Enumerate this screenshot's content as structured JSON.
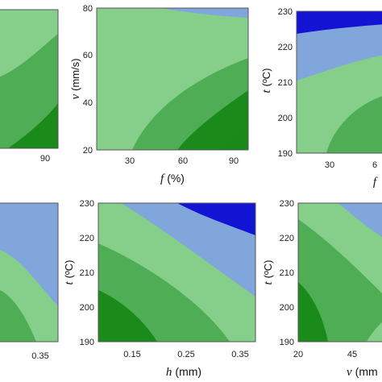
{
  "colors": {
    "darkgreen": "#1a8a1a",
    "midgreen": "#4fae55",
    "lightgreen": "#85cf8a",
    "lightblue": "#80a6dc",
    "darkblue": "#1313d4"
  },
  "chart_data": [
    {
      "type": "contour",
      "id": "p1",
      "xlabel": "",
      "ylabel": "",
      "xticks": [
        "90"
      ],
      "yticks": [],
      "levels": [
        "darkgreen",
        "midgreen",
        "lightgreen"
      ]
    },
    {
      "type": "contour",
      "id": "p2",
      "xlabel_var": "f",
      "xlabel_unit": "(%)",
      "ylabel_var": "v",
      "ylabel_unit": "(mm/s)",
      "xticks": [
        "30",
        "60",
        "90"
      ],
      "yticks": [
        "20",
        "40",
        "60",
        "80"
      ],
      "xlim": [
        10,
        100
      ],
      "ylim": [
        20,
        80
      ],
      "levels": [
        "darkgreen",
        "midgreen",
        "lightgreen",
        "lightblue"
      ]
    },
    {
      "type": "contour",
      "id": "p3",
      "xlabel_var": "f",
      "xlabel_unit": "",
      "ylabel_var": "t",
      "ylabel_unit": "(ºC)",
      "xticks": [
        "30",
        "6"
      ],
      "yticks": [
        "190",
        "200",
        "210",
        "220",
        "230"
      ],
      "ylim": [
        190,
        230
      ],
      "levels": [
        "midgreen",
        "lightgreen",
        "lightblue",
        "darkblue"
      ]
    },
    {
      "type": "contour",
      "id": "p4",
      "xlabel": "",
      "ylabel": "",
      "xticks": [
        "0.35"
      ],
      "yticks": [],
      "levels": [
        "midgreen",
        "lightgreen",
        "lightblue"
      ]
    },
    {
      "type": "contour",
      "id": "p5",
      "xlabel_var": "h",
      "xlabel_unit": "(mm)",
      "ylabel_var": "t",
      "ylabel_unit": "(ºC)",
      "xticks": [
        "0.15",
        "0.25",
        "0.35"
      ],
      "yticks": [
        "190",
        "200",
        "210",
        "220",
        "230"
      ],
      "xlim": [
        0.05,
        0.4
      ],
      "ylim": [
        190,
        230
      ],
      "levels": [
        "darkgreen",
        "midgreen",
        "lightgreen",
        "lightblue",
        "darkblue"
      ]
    },
    {
      "type": "contour",
      "id": "p6",
      "xlabel_var": "v",
      "xlabel_unit": "(mm",
      "ylabel_var": "t",
      "ylabel_unit": "(ºC)",
      "xticks": [
        "20",
        "45"
      ],
      "yticks": [
        "190",
        "200",
        "210",
        "220",
        "230"
      ],
      "ylim": [
        190,
        230
      ],
      "levels": [
        "darkgreen",
        "midgreen",
        "lightgreen",
        "lightblue"
      ]
    }
  ]
}
